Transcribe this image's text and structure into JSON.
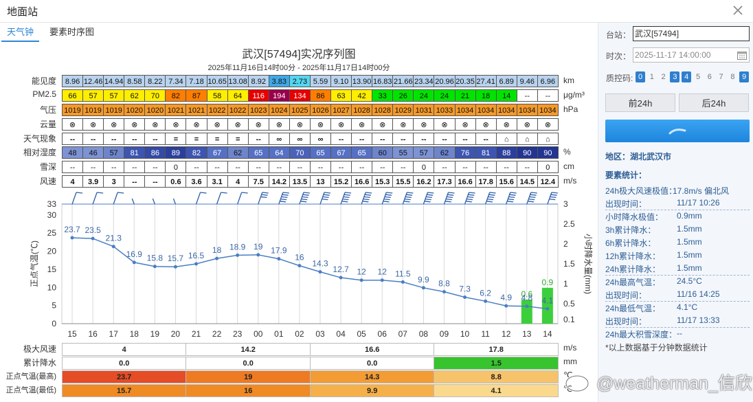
{
  "window": {
    "title": "地面站"
  },
  "tabs": [
    {
      "label": "天气钟",
      "active": true
    },
    {
      "label": "要素时序图",
      "active": false
    }
  ],
  "chart": {
    "title": "武汉[57494]实况序列图",
    "subtitle": "2025年11月16日14时00分 - 2025年11月17日14时00分"
  },
  "rows": {
    "visibility": {
      "label": "能见度",
      "unit": "km",
      "values": [
        "8.96",
        "12.46",
        "14.94",
        "8.58",
        "8.22",
        "7.34",
        "7.18",
        "10.65",
        "13.08",
        "8.92",
        "3.83",
        "2.73",
        "5.59",
        "9.10",
        "13.90",
        "16.83",
        "21.66",
        "23.34",
        "20.96",
        "20.35",
        "27.41",
        "6.89",
        "9.46",
        "6.96"
      ]
    },
    "pm25": {
      "label": "PM2.5",
      "unit": "μg/m³",
      "values": [
        "66",
        "57",
        "57",
        "62",
        "70",
        "82",
        "87",
        "58",
        "64",
        "116",
        "194",
        "134",
        "86",
        "63",
        "42",
        "33",
        "26",
        "24",
        "24",
        "21",
        "18",
        "14",
        "--",
        "--"
      ]
    },
    "pressure": {
      "label": "气压",
      "unit": "hPa",
      "values": [
        "1019",
        "1019",
        "1019",
        "1020",
        "1020",
        "1021",
        "1021",
        "1022",
        "1022",
        "1023",
        "1024",
        "1025",
        "1026",
        "1027",
        "1028",
        "1028",
        "1029",
        "1031",
        "1033",
        "1034",
        "1034",
        "1034",
        "1034",
        "1034"
      ]
    },
    "cloud": {
      "label": "云量",
      "unit": "",
      "symbol": "⊗"
    },
    "weather": {
      "label": "天气现象",
      "unit": "",
      "values": [
        "--",
        "--",
        "--",
        "--",
        "--",
        "=",
        "=",
        "=",
        "=",
        "--",
        "∞",
        "∞",
        "∞",
        "--",
        "--",
        "--",
        "--",
        "--",
        "--",
        "--",
        "--",
        "⌂",
        "⌂",
        "⌂"
      ]
    },
    "humidity": {
      "label": "相对湿度",
      "unit": "%",
      "values": [
        "48",
        "46",
        "57",
        "81",
        "86",
        "89",
        "82",
        "67",
        "62",
        "65",
        "64",
        "70",
        "65",
        "67",
        "65",
        "60",
        "55",
        "57",
        "62",
        "76",
        "81",
        "88",
        "90",
        "90"
      ]
    },
    "snow": {
      "label": "雪深",
      "unit": "cm",
      "values": [
        "--",
        "--",
        "--",
        "--",
        "--",
        "0",
        "--",
        "--",
        "--",
        "--",
        "--",
        "--",
        "--",
        "--",
        "--",
        "--",
        "--",
        "0",
        "--",
        "--",
        "--",
        "--",
        "--",
        "0"
      ]
    },
    "wind": {
      "label": "风速",
      "unit": "m/s",
      "values": [
        "4",
        "3.9",
        "3",
        "--",
        "--",
        "0.6",
        "3.6",
        "3.1",
        "4",
        "7.5",
        "14.2",
        "13.5",
        "13",
        "15.2",
        "16.6",
        "15.3",
        "15.5",
        "16.2",
        "17.3",
        "16.6",
        "17.8",
        "15.6",
        "14.5",
        "12.4"
      ]
    }
  },
  "colors": {
    "vis": [
      "#b9d3ee",
      "#b9d3ee",
      "#b9d3ee",
      "#b9d3ee",
      "#b9d3ee",
      "#b9d3ee",
      "#b9d3ee",
      "#b9d3ee",
      "#b9d3ee",
      "#b9d3ee",
      "#3fa8e6",
      "#55d6f0",
      "#b9d3ee",
      "#b9d3ee",
      "#b9d3ee",
      "#b9d3ee",
      "#b9d3ee",
      "#b9d3ee",
      "#b9d3ee",
      "#b9d3ee",
      "#b9d3ee",
      "#b9d3ee",
      "#b9d3ee",
      "#b9d3ee"
    ],
    "pm": [
      "#ffee00",
      "#ffee00",
      "#ffee00",
      "#ffee00",
      "#ffee00",
      "#ff7e00",
      "#ff7e00",
      "#ffee00",
      "#ffee00",
      "#e60000",
      "#99004c",
      "#e60000",
      "#ff7e00",
      "#ffee00",
      "#ffee00",
      "#00e400",
      "#00e400",
      "#00e400",
      "#00e400",
      "#00e400",
      "#00e400",
      "#00e400",
      "#ffffff",
      "#ffffff"
    ],
    "pres": [
      "#f59a2a",
      "#f59a2a",
      "#f59a2a",
      "#f59a2a",
      "#f59a2a",
      "#f59a2a",
      "#f59a2a",
      "#f59a2a",
      "#f59a2a",
      "#f59a2a",
      "#f59a2a",
      "#f59a2a",
      "#f59a2a",
      "#f59a2a",
      "#f59a2a",
      "#f59a2a",
      "#f59a2a",
      "#f59a2a",
      "#f59a2a",
      "#f59a2a",
      "#f59a2a",
      "#f59a2a",
      "#f59a2a",
      "#f59a2a"
    ],
    "hum": [
      "#7d93d4",
      "#7d93d4",
      "#6e85cc",
      "#3d55b0",
      "#334aa6",
      "#2b3f9c",
      "#3d55b0",
      "#5570c4",
      "#6e85cc",
      "#5570c4",
      "#5570c4",
      "#4a62b8",
      "#5570c4",
      "#5570c4",
      "#5570c4",
      "#6e85cc",
      "#7d93d4",
      "#7d93d4",
      "#6e85cc",
      "#3d55b0",
      "#3d55b0",
      "#2b3f9c",
      "#223591",
      "#223591"
    ]
  },
  "chart_data": {
    "type": "line",
    "x": [
      "15",
      "16",
      "17",
      "18",
      "19",
      "20",
      "21",
      "22",
      "23",
      "00",
      "01",
      "02",
      "03",
      "04",
      "05",
      "06",
      "07",
      "08",
      "09",
      "10",
      "11",
      "12",
      "13",
      "14"
    ],
    "series": [
      {
        "values": [
          23.7,
          23.5,
          21.3,
          16.9,
          15.8,
          15.7,
          16.5,
          18,
          18.9,
          19,
          17.9,
          16,
          14.3,
          12.7,
          12,
          12,
          11.5,
          9.9,
          8.8,
          7.3,
          6.2,
          4.9,
          4.8,
          4.1
        ]
      }
    ],
    "bars": {
      "indices": [
        22,
        23
      ],
      "values": [
        0.6,
        0.9
      ]
    },
    "ylabel": "正点气温(℃)",
    "y2label": "小时降水量(mm)",
    "ylim": [
      0,
      33
    ],
    "yticks": [
      "0",
      "5",
      "10",
      "15",
      "20",
      "25",
      "30",
      "33"
    ],
    "y2lim": [
      0,
      3
    ],
    "y2ticks": [
      "0.1",
      "0.5",
      "1",
      "1.5",
      "2",
      "2.5",
      "3"
    ],
    "line_color": "#4a7ec4",
    "bar_color": "#3ccf3c"
  },
  "summary": {
    "max_wind": {
      "label": "极大风速",
      "unit": "m/s",
      "values": [
        "4",
        "14.2",
        "16.6",
        "17.8"
      ]
    },
    "precip": {
      "label": "累计降水",
      "unit": "mm",
      "values": [
        "0.0",
        "0.0",
        "0.0",
        "1.5"
      ],
      "colors": [
        "#ffffff",
        "#ffffff",
        "#ffffff",
        "#37c42e"
      ]
    },
    "tmax": {
      "label": "正点气温(最高)",
      "unit": "℃",
      "values": [
        "23.7",
        "19",
        "14.3",
        "8.8"
      ],
      "colors": [
        "#e44d26",
        "#ee7a24",
        "#f39c34",
        "#f7c36a"
      ]
    },
    "tmin": {
      "label": "正点气温(最低)",
      "unit": "℃",
      "values": [
        "15.7",
        "16",
        "9.9",
        "4.1"
      ],
      "colors": [
        "#f08a24",
        "#f08a24",
        "#f6b04a",
        "#fbd98c"
      ]
    }
  },
  "side": {
    "station_label": "台站：",
    "station_value": "武汉[57494]",
    "time_label": "时次：",
    "time_value": "2025-11-17 14:00:00",
    "qc_label": "质控码:",
    "qc_codes": [
      {
        "v": "0",
        "on": true
      },
      {
        "v": "1",
        "on": false
      },
      {
        "v": "2",
        "on": false
      },
      {
        "v": "3",
        "on": true
      },
      {
        "v": "4",
        "on": true
      },
      {
        "v": "5",
        "on": false
      },
      {
        "v": "6",
        "on": false
      },
      {
        "v": "7",
        "on": false
      },
      {
        "v": "8",
        "on": false
      },
      {
        "v": "9",
        "on": true
      }
    ],
    "prev_button": "前24h",
    "next_button": "后24h",
    "region": "地区：湖北武汉市",
    "stats_title": "要素统计：",
    "stats": [
      {
        "k": "24h极大风速极值：",
        "v": "17.8m/s 偏北风"
      },
      {
        "k": "出现时间：",
        "v": "11/17 10:26"
      },
      {
        "k": "小时降水极值：",
        "v": "0.9mm"
      },
      {
        "k": "3h累计降水：",
        "v": "1.5mm"
      },
      {
        "k": "6h累计降水：",
        "v": "1.5mm"
      },
      {
        "k": "12h累计降水：",
        "v": "1.5mm"
      },
      {
        "k": "24h累计降水：",
        "v": "1.5mm"
      },
      {
        "k": "24h最高气温：",
        "v": "24.5°C"
      },
      {
        "k": "出现时间：",
        "v": "11/16 14:25"
      },
      {
        "k": "24h最低气温：",
        "v": "4.1°C"
      },
      {
        "k": "出现时间：",
        "v": "11/17 13:33"
      },
      {
        "k": "24h最大积雪深度：",
        "v": "--"
      }
    ],
    "note": "*以上数据基于分钟数据统计"
  },
  "watermark": {
    "text": "@weatherman_信欣"
  }
}
